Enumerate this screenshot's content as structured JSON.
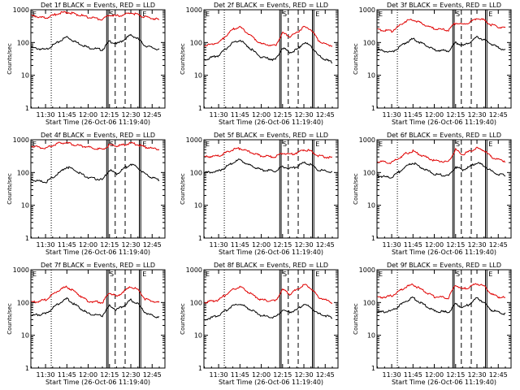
{
  "colors": {
    "events": "#000000",
    "lld": "#e00000",
    "background": "#ffffff"
  },
  "chart_data": [
    {
      "type": "line",
      "title": "Det 1f BLACK = Events, RED = LLD",
      "xlabel": "Start Time (26-Oct-06 11:19:40)",
      "ylabel": "Counts/sec",
      "yscale": "log",
      "ylim": [
        1,
        1000
      ],
      "x_ticks": [
        "11:30",
        "11:45",
        "12:00",
        "12:15",
        "12:30",
        "12:45"
      ],
      "y_ticks": [
        "1",
        "10",
        "100",
        "1000"
      ],
      "markers": [
        "E",
        "S",
        "E"
      ],
      "x": [
        "11:20",
        "11:30",
        "11:40",
        "11:45",
        "11:50",
        "12:00",
        "12:10",
        "12:15",
        "12:20",
        "12:25",
        "12:30",
        "12:35",
        "12:40",
        "12:45",
        "12:50"
      ],
      "series": [
        {
          "name": "Events",
          "values": [
            70,
            60,
            110,
            150,
            110,
            70,
            60,
            110,
            90,
            120,
            170,
            130,
            80,
            70,
            60
          ]
        },
        {
          "name": "LLD",
          "values": [
            650,
            550,
            800,
            850,
            750,
            600,
            500,
            700,
            650,
            700,
            800,
            700,
            600,
            550,
            500
          ]
        }
      ]
    },
    {
      "type": "line",
      "title": "Det 2f BLACK = Events, RED = LLD",
      "xlabel": "Start Time (26-Oct-06 11:19:40)",
      "ylabel": "Counts/sec",
      "yscale": "log",
      "ylim": [
        1,
        1000
      ],
      "x_ticks": [
        "11:30",
        "11:45",
        "12:00",
        "12:15",
        "12:30",
        "12:45"
      ],
      "y_ticks": [
        "1",
        "10",
        "100",
        "1000"
      ],
      "markers": [
        "E",
        "S",
        "E"
      ],
      "x": [
        "11:20",
        "11:30",
        "11:40",
        "11:45",
        "11:50",
        "12:00",
        "12:10",
        "12:15",
        "12:20",
        "12:25",
        "12:30",
        "12:35",
        "12:40",
        "12:45",
        "12:50"
      ],
      "series": [
        {
          "name": "Events",
          "values": [
            30,
            40,
            100,
            120,
            80,
            35,
            30,
            70,
            50,
            60,
            100,
            80,
            40,
            30,
            25
          ]
        },
        {
          "name": "LLD",
          "values": [
            80,
            100,
            250,
            300,
            200,
            90,
            80,
            200,
            150,
            200,
            300,
            250,
            120,
            90,
            80
          ]
        }
      ]
    },
    {
      "type": "line",
      "title": "Det 3f BLACK = Events, RED = LLD",
      "xlabel": "Start Time (26-Oct-06 11:19:40)",
      "ylabel": "Counts/sec",
      "yscale": "log",
      "ylim": [
        1,
        1000
      ],
      "x_ticks": [
        "11:30",
        "11:45",
        "12:00",
        "12:15",
        "12:30",
        "12:45"
      ],
      "y_ticks": [
        "1",
        "10",
        "100",
        "1000"
      ],
      "markers": [
        "E",
        "S",
        "E"
      ],
      "x": [
        "11:20",
        "11:30",
        "11:40",
        "11:45",
        "11:50",
        "12:00",
        "12:10",
        "12:15",
        "12:20",
        "12:25",
        "12:30",
        "12:35",
        "12:40",
        "12:45",
        "12:50"
      ],
      "series": [
        {
          "name": "Events",
          "values": [
            60,
            50,
            100,
            130,
            100,
            60,
            55,
            100,
            80,
            100,
            150,
            120,
            90,
            70,
            60
          ]
        },
        {
          "name": "LLD",
          "values": [
            250,
            220,
            450,
            500,
            400,
            260,
            240,
            400,
            350,
            420,
            550,
            480,
            350,
            300,
            280
          ]
        }
      ]
    },
    {
      "type": "line",
      "title": "Det 4f BLACK = Events, RED = LLD",
      "xlabel": "Start Time (26-Oct-06 11:19:40)",
      "ylabel": "Counts/sec",
      "yscale": "log",
      "ylim": [
        1,
        1000
      ],
      "x_ticks": [
        "11:30",
        "11:45",
        "12:00",
        "12:15",
        "12:30",
        "12:45"
      ],
      "y_ticks": [
        "1",
        "10",
        "100",
        "1000"
      ],
      "markers": [
        "E",
        "S",
        "E"
      ],
      "x": [
        "11:20",
        "11:30",
        "11:40",
        "11:45",
        "11:50",
        "12:00",
        "12:10",
        "12:15",
        "12:20",
        "12:25",
        "12:30",
        "12:35",
        "12:40",
        "12:45",
        "12:50"
      ],
      "series": [
        {
          "name": "Events",
          "values": [
            60,
            50,
            100,
            150,
            120,
            70,
            60,
            120,
            90,
            130,
            180,
            140,
            90,
            70,
            60
          ]
        },
        {
          "name": "LLD",
          "values": [
            650,
            550,
            800,
            800,
            700,
            600,
            500,
            700,
            650,
            700,
            800,
            700,
            600,
            550,
            500
          ]
        }
      ]
    },
    {
      "type": "line",
      "title": "Det 5f BLACK = Events, RED = LLD",
      "xlabel": "Start Time (26-Oct-06 11:19:40)",
      "ylabel": "Counts/sec",
      "yscale": "log",
      "ylim": [
        1,
        1000
      ],
      "x_ticks": [
        "11:30",
        "11:45",
        "12:00",
        "12:15",
        "12:30",
        "12:45"
      ],
      "y_ticks": [
        "1",
        "10",
        "100",
        "1000"
      ],
      "markers": [
        "E",
        "S",
        "E"
      ],
      "x": [
        "11:20",
        "11:30",
        "11:40",
        "11:45",
        "11:50",
        "12:00",
        "12:10",
        "12:15",
        "12:20",
        "12:25",
        "12:30",
        "12:35",
        "12:40",
        "12:45",
        "12:50"
      ],
      "series": [
        {
          "name": "Events",
          "values": [
            100,
            110,
            200,
            250,
            180,
            120,
            110,
            150,
            130,
            150,
            200,
            170,
            120,
            110,
            100
          ]
        },
        {
          "name": "LLD",
          "values": [
            300,
            320,
            500,
            550,
            450,
            320,
            300,
            400,
            350,
            400,
            500,
            450,
            330,
            300,
            280
          ]
        }
      ]
    },
    {
      "type": "line",
      "title": "Det 6f BLACK = Events, RED = LLD",
      "xlabel": "Start Time (26-Oct-06 11:19:40)",
      "ylabel": "Counts/sec",
      "yscale": "log",
      "ylim": [
        1,
        1000
      ],
      "x_ticks": [
        "11:30",
        "11:45",
        "12:00",
        "12:15",
        "12:30",
        "12:45"
      ],
      "y_ticks": [
        "1",
        "10",
        "100",
        "1000"
      ],
      "markers": [
        "E",
        "S",
        "E"
      ],
      "x": [
        "11:20",
        "11:30",
        "11:40",
        "11:45",
        "11:50",
        "12:00",
        "12:10",
        "12:15",
        "12:20",
        "12:25",
        "12:30",
        "12:35",
        "12:40",
        "12:45",
        "12:50"
      ],
      "series": [
        {
          "name": "Events",
          "values": [
            80,
            70,
            150,
            200,
            150,
            90,
            80,
            150,
            120,
            150,
            200,
            160,
            110,
            90,
            80
          ]
        },
        {
          "name": "LLD",
          "values": [
            220,
            200,
            380,
            450,
            350,
            230,
            210,
            500,
            350,
            450,
            550,
            480,
            300,
            250,
            220
          ]
        }
      ]
    },
    {
      "type": "line",
      "title": "Det 7f BLACK = Events, RED = LLD",
      "xlabel": "Start Time (26-Oct-06 11:19:40)",
      "ylabel": "Counts/sec",
      "yscale": "log",
      "ylim": [
        1,
        1000
      ],
      "x_ticks": [
        "11:30",
        "11:45",
        "12:00",
        "12:15",
        "12:30",
        "12:45"
      ],
      "y_ticks": [
        "1",
        "10",
        "100",
        "1000"
      ],
      "markers": [
        "E",
        "S",
        "E"
      ],
      "x": [
        "11:20",
        "11:30",
        "11:40",
        "11:45",
        "11:50",
        "12:00",
        "12:10",
        "12:15",
        "12:20",
        "12:25",
        "12:30",
        "12:35",
        "12:40",
        "12:45",
        "12:50"
      ],
      "series": [
        {
          "name": "Events",
          "values": [
            40,
            45,
            100,
            130,
            90,
            45,
            40,
            80,
            60,
            80,
            120,
            90,
            50,
            40,
            35
          ]
        },
        {
          "name": "LLD",
          "values": [
            100,
            120,
            250,
            300,
            220,
            110,
            100,
            200,
            150,
            220,
            300,
            250,
            130,
            110,
            100
          ]
        }
      ]
    },
    {
      "type": "line",
      "title": "Det 8f BLACK = Events, RED = LLD",
      "xlabel": "Start Time (26-Oct-06 11:19:40)",
      "ylabel": "Counts/sec",
      "yscale": "log",
      "ylim": [
        1,
        1000
      ],
      "x_ticks": [
        "11:30",
        "11:45",
        "12:00",
        "12:15",
        "12:30",
        "12:45"
      ],
      "y_ticks": [
        "1",
        "10",
        "100",
        "1000"
      ],
      "markers": [
        "E",
        "S",
        "E"
      ],
      "x": [
        "11:20",
        "11:30",
        "11:40",
        "11:45",
        "11:50",
        "12:00",
        "12:10",
        "12:15",
        "12:20",
        "12:25",
        "12:30",
        "12:35",
        "12:40",
        "12:45",
        "12:50"
      ],
      "series": [
        {
          "name": "Events",
          "values": [
            30,
            40,
            80,
            90,
            70,
            40,
            35,
            60,
            50,
            60,
            90,
            70,
            45,
            40,
            35
          ]
        },
        {
          "name": "LLD",
          "values": [
            100,
            120,
            250,
            300,
            220,
            120,
            110,
            250,
            180,
            250,
            350,
            280,
            150,
            120,
            100
          ]
        }
      ]
    },
    {
      "type": "line",
      "title": "Det 9f BLACK = Events, RED = LLD",
      "xlabel": "Start Time (26-Oct-06 11:19:40)",
      "ylabel": "Counts/sec",
      "yscale": "log",
      "ylim": [
        1,
        1000
      ],
      "x_ticks": [
        "11:30",
        "11:45",
        "12:00",
        "12:15",
        "12:30",
        "12:45"
      ],
      "y_ticks": [
        "1",
        "10",
        "100",
        "1000"
      ],
      "markers": [
        "E",
        "S",
        "E"
      ],
      "x": [
        "11:20",
        "11:30",
        "11:40",
        "11:45",
        "11:50",
        "12:00",
        "12:10",
        "12:15",
        "12:20",
        "12:25",
        "12:30",
        "12:35",
        "12:40",
        "12:45",
        "12:50"
      ],
      "series": [
        {
          "name": "Events",
          "values": [
            50,
            55,
            110,
            140,
            100,
            55,
            50,
            90,
            70,
            90,
            140,
            100,
            60,
            50,
            45
          ]
        },
        {
          "name": "LLD",
          "values": [
            140,
            160,
            300,
            350,
            260,
            150,
            140,
            350,
            250,
            300,
            380,
            320,
            180,
            150,
            140
          ]
        }
      ]
    }
  ]
}
